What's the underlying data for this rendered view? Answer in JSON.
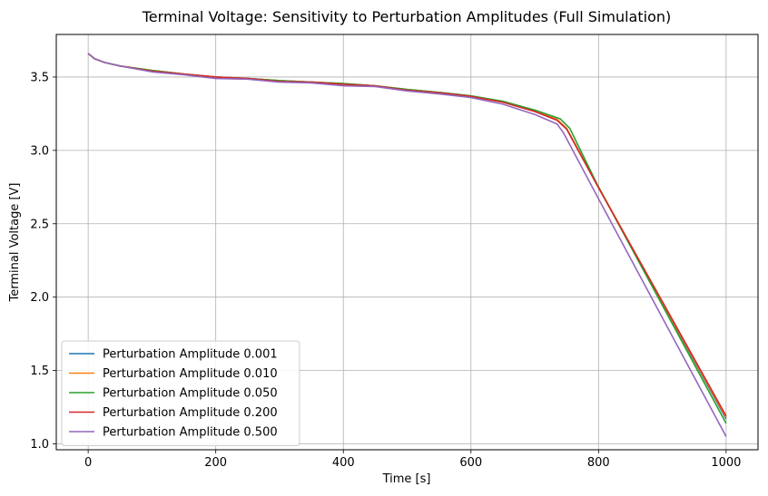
{
  "chart_data": {
    "type": "line",
    "title": "Terminal Voltage: Sensitivity to Perturbation Amplitudes (Full Simulation)",
    "xlabel": "Time [s]",
    "ylabel": "Terminal Voltage [V]",
    "xlim": [
      -50,
      1050
    ],
    "ylim": [
      0.96,
      3.79
    ],
    "xticks": [
      0,
      200,
      400,
      600,
      800,
      1000
    ],
    "yticks": [
      1.0,
      1.5,
      2.0,
      2.5,
      3.0,
      3.5
    ],
    "xtick_labels": [
      "0",
      "200",
      "400",
      "600",
      "800",
      "1000"
    ],
    "ytick_labels": [
      "1.0",
      "1.5",
      "2.0",
      "2.5",
      "3.0",
      "3.5"
    ],
    "grid": true,
    "legend_position": "lower-left",
    "series": [
      {
        "name": "Perturbation Amplitude 0.001",
        "color": "#1f77b4",
        "points": [
          [
            0,
            3.66
          ],
          [
            10,
            3.625
          ],
          [
            25,
            3.6
          ],
          [
            50,
            3.575
          ],
          [
            100,
            3.545
          ],
          [
            150,
            3.52
          ],
          [
            200,
            3.5
          ],
          [
            250,
            3.49
          ],
          [
            300,
            3.475
          ],
          [
            350,
            3.465
          ],
          [
            400,
            3.455
          ],
          [
            450,
            3.44
          ],
          [
            500,
            3.415
          ],
          [
            550,
            3.395
          ],
          [
            600,
            3.37
          ],
          [
            650,
            3.33
          ],
          [
            700,
            3.27
          ],
          [
            735,
            3.21
          ],
          [
            750,
            3.15
          ],
          [
            800,
            2.75
          ],
          [
            900,
            1.96
          ],
          [
            1000,
            1.17
          ]
        ]
      },
      {
        "name": "Perturbation Amplitude 0.010",
        "color": "#ff7f0e",
        "points": [
          [
            0,
            3.66
          ],
          [
            10,
            3.625
          ],
          [
            25,
            3.6
          ],
          [
            50,
            3.575
          ],
          [
            100,
            3.545
          ],
          [
            150,
            3.52
          ],
          [
            200,
            3.5
          ],
          [
            250,
            3.49
          ],
          [
            300,
            3.475
          ],
          [
            350,
            3.465
          ],
          [
            400,
            3.455
          ],
          [
            450,
            3.44
          ],
          [
            500,
            3.415
          ],
          [
            550,
            3.395
          ],
          [
            600,
            3.37
          ],
          [
            650,
            3.33
          ],
          [
            700,
            3.27
          ],
          [
            735,
            3.21
          ],
          [
            750,
            3.15
          ],
          [
            800,
            2.75
          ],
          [
            900,
            1.965
          ],
          [
            1000,
            1.18
          ]
        ]
      },
      {
        "name": "Perturbation Amplitude 0.050",
        "color": "#2ca02c",
        "points": [
          [
            0,
            3.66
          ],
          [
            10,
            3.625
          ],
          [
            25,
            3.6
          ],
          [
            50,
            3.575
          ],
          [
            100,
            3.545
          ],
          [
            150,
            3.52
          ],
          [
            200,
            3.5
          ],
          [
            250,
            3.49
          ],
          [
            300,
            3.475
          ],
          [
            350,
            3.465
          ],
          [
            400,
            3.455
          ],
          [
            450,
            3.44
          ],
          [
            500,
            3.415
          ],
          [
            550,
            3.395
          ],
          [
            600,
            3.372
          ],
          [
            650,
            3.335
          ],
          [
            700,
            3.275
          ],
          [
            740,
            3.215
          ],
          [
            755,
            3.15
          ],
          [
            800,
            2.75
          ],
          [
            900,
            1.945
          ],
          [
            1000,
            1.14
          ]
        ]
      },
      {
        "name": "Perturbation Amplitude 0.200",
        "color": "#d62728",
        "points": [
          [
            0,
            3.66
          ],
          [
            10,
            3.625
          ],
          [
            25,
            3.6
          ],
          [
            50,
            3.575
          ],
          [
            100,
            3.54
          ],
          [
            150,
            3.52
          ],
          [
            200,
            3.5
          ],
          [
            250,
            3.49
          ],
          [
            300,
            3.47
          ],
          [
            350,
            3.465
          ],
          [
            400,
            3.45
          ],
          [
            450,
            3.44
          ],
          [
            500,
            3.41
          ],
          [
            550,
            3.393
          ],
          [
            600,
            3.368
          ],
          [
            650,
            3.328
          ],
          [
            700,
            3.265
          ],
          [
            735,
            3.205
          ],
          [
            750,
            3.145
          ],
          [
            800,
            2.745
          ],
          [
            900,
            1.97
          ],
          [
            1000,
            1.19
          ]
        ]
      },
      {
        "name": "Perturbation Amplitude 0.500",
        "color": "#9467bd",
        "points": [
          [
            0,
            3.66
          ],
          [
            10,
            3.625
          ],
          [
            25,
            3.6
          ],
          [
            50,
            3.575
          ],
          [
            100,
            3.535
          ],
          [
            150,
            3.515
          ],
          [
            200,
            3.49
          ],
          [
            250,
            3.485
          ],
          [
            300,
            3.465
          ],
          [
            350,
            3.46
          ],
          [
            400,
            3.44
          ],
          [
            450,
            3.435
          ],
          [
            500,
            3.405
          ],
          [
            550,
            3.385
          ],
          [
            600,
            3.36
          ],
          [
            650,
            3.315
          ],
          [
            700,
            3.245
          ],
          [
            735,
            3.18
          ],
          [
            745,
            3.12
          ],
          [
            800,
            2.67
          ],
          [
            900,
            1.86
          ],
          [
            1000,
            1.05
          ]
        ]
      }
    ]
  }
}
